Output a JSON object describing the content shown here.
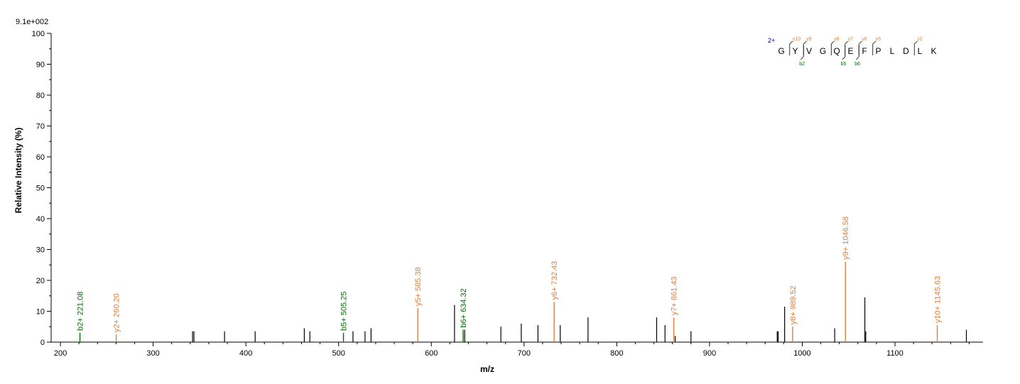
{
  "chart_data": {
    "type": "bar",
    "scale_label": "9.1e+002",
    "xlabel": "m/z",
    "ylabel": "Relative   Intensity (%)",
    "xlim": [
      190,
      1195
    ],
    "ylim": [
      0,
      100
    ],
    "x_ticks": [
      "200",
      "300",
      "400",
      "500",
      "600",
      "700",
      "800",
      "900",
      "1000",
      "1100"
    ],
    "y_ticks": [
      "0",
      "10",
      "20",
      "30",
      "40",
      "50",
      "60",
      "70",
      "80",
      "90",
      "100"
    ],
    "colors": {
      "b_ion": "#007000",
      "y_ion": "#e0803a",
      "other": "#000000",
      "charge": "#00008b"
    },
    "unlabeled_peaks": [
      {
        "mz": 342.5,
        "intensity": 3.5
      },
      {
        "mz": 344.0,
        "intensity": 3.5
      },
      {
        "mz": 377.0,
        "intensity": 3.5
      },
      {
        "mz": 410.0,
        "intensity": 3.5
      },
      {
        "mz": 463.0,
        "intensity": 4.5
      },
      {
        "mz": 469.0,
        "intensity": 3.5
      },
      {
        "mz": 515.5,
        "intensity": 3.5
      },
      {
        "mz": 528.5,
        "intensity": 3.5
      },
      {
        "mz": 535.0,
        "intensity": 4.5
      },
      {
        "mz": 625.0,
        "intensity": 12.0
      },
      {
        "mz": 636.0,
        "intensity": 4.0
      },
      {
        "mz": 675.0,
        "intensity": 5.0
      },
      {
        "mz": 697.0,
        "intensity": 6.0
      },
      {
        "mz": 715.0,
        "intensity": 5.5
      },
      {
        "mz": 739.0,
        "intensity": 5.5
      },
      {
        "mz": 769.0,
        "intensity": 8.0
      },
      {
        "mz": 843.0,
        "intensity": 8.0
      },
      {
        "mz": 852.0,
        "intensity": 5.5
      },
      {
        "mz": 863.0,
        "intensity": 2.0
      },
      {
        "mz": 880.0,
        "intensity": 3.5
      },
      {
        "mz": 973.0,
        "intensity": 3.5
      },
      {
        "mz": 974.0,
        "intensity": 3.5
      },
      {
        "mz": 981.0,
        "intensity": 11.5
      },
      {
        "mz": 1035.0,
        "intensity": 4.5
      },
      {
        "mz": 1067.5,
        "intensity": 14.5
      },
      {
        "mz": 1068.5,
        "intensity": 3.5
      },
      {
        "mz": 1177.0,
        "intensity": 4.0
      }
    ],
    "labeled_peaks": [
      {
        "mz": 221.08,
        "intensity": 3.0,
        "ion": "b",
        "label": "b2+ 221.08"
      },
      {
        "mz": 260.2,
        "intensity": 2.5,
        "ion": "y",
        "label": "y2+ 260.20"
      },
      {
        "mz": 505.25,
        "intensity": 3.0,
        "ion": "b",
        "label": "b5+ 505.25"
      },
      {
        "mz": 585.38,
        "intensity": 11.0,
        "ion": "y",
        "label": "y5+ 585.38"
      },
      {
        "mz": 634.32,
        "intensity": 4.0,
        "ion": "b",
        "label": "b6+ 634.32"
      },
      {
        "mz": 732.43,
        "intensity": 13.0,
        "ion": "y",
        "label": "y6+ 732.43"
      },
      {
        "mz": 861.43,
        "intensity": 8.0,
        "ion": "y",
        "label": "y7+ 861.43"
      },
      {
        "mz": 989.52,
        "intensity": 5.0,
        "ion": "y",
        "label": "y8+ 989.52"
      },
      {
        "mz": 1046.58,
        "intensity": 26.0,
        "ion": "y",
        "label": "y9+ 1046.58"
      },
      {
        "mz": 1145.63,
        "intensity": 5.5,
        "ion": "y",
        "label": "y10+ 1145.63"
      }
    ],
    "sequence": {
      "charge": "2+",
      "residues": [
        "G",
        "Y",
        "V",
        "G",
        "Q",
        "E",
        "F",
        "P",
        "L",
        "D",
        "L",
        "K"
      ],
      "y_ions": [
        {
          "after": 1,
          "label": "y10"
        },
        {
          "after": 2,
          "label": "y9"
        },
        {
          "after": 4,
          "label": "y8"
        },
        {
          "after": 5,
          "label": "y7"
        },
        {
          "after": 6,
          "label": "y6"
        },
        {
          "after": 7,
          "label": "y5"
        },
        {
          "after": 10,
          "label": "y2"
        }
      ],
      "b_ions": [
        {
          "after": 2,
          "label": "b2"
        },
        {
          "after": 5,
          "label": "b5"
        },
        {
          "after": 6,
          "label": "b6"
        }
      ]
    }
  }
}
